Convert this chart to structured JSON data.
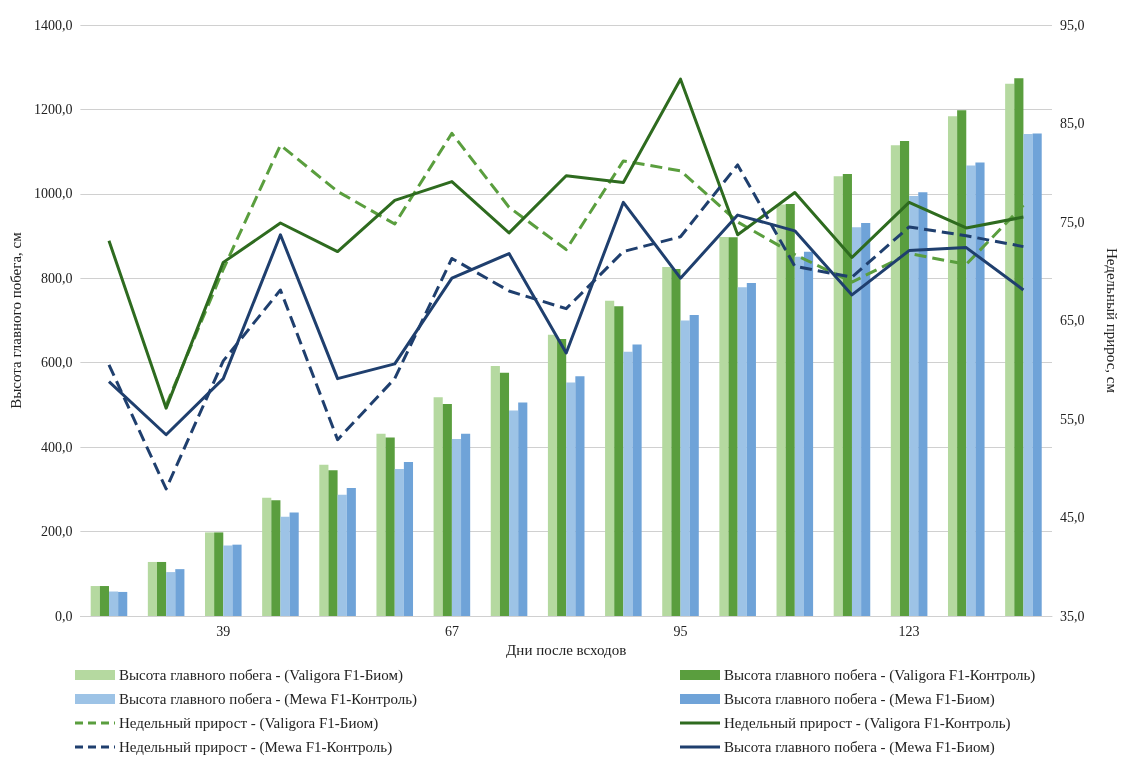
{
  "chart_data": {
    "type": "bar",
    "xlabel": "Дни после всходов",
    "ylabel": "Высота главного побега, см",
    "y2label": "Недельный прирос, см",
    "categories": [
      null,
      null,
      "39",
      null,
      null,
      null,
      "67",
      null,
      null,
      null,
      "95",
      null,
      null,
      null,
      "123",
      null,
      null
    ],
    "ylim": [
      0,
      1400
    ],
    "yticks": [
      {
        "value": 0,
        "label": "0,0"
      },
      {
        "value": 200,
        "label": "200,0"
      },
      {
        "value": 400,
        "label": "400,0"
      },
      {
        "value": 600,
        "label": "600,0"
      },
      {
        "value": 800,
        "label": "800,0"
      },
      {
        "value": 1000,
        "label": "1000,0"
      },
      {
        "value": 1200,
        "label": "1200,0"
      },
      {
        "value": 1400,
        "label": "1400,0"
      }
    ],
    "y2lim": [
      35,
      95
    ],
    "y2ticks": [
      {
        "value": 35,
        "label": "35,0"
      },
      {
        "value": 45,
        "label": "45,0"
      },
      {
        "value": 55,
        "label": "55,0"
      },
      {
        "value": 65,
        "label": "65,0"
      },
      {
        "value": 75,
        "label": "75,0"
      },
      {
        "value": 85,
        "label": "85,0"
      },
      {
        "value": 95,
        "label": "95,0"
      }
    ],
    "grid": "y",
    "legend": "bottom",
    "marker": "none",
    "series": [
      {
        "name": "Высота главного побега - (Valigora F1-Биом)",
        "color": "#b5d9a0",
        "values": [
          71,
          128,
          198,
          280,
          358,
          432,
          518,
          592,
          666,
          747,
          827,
          898,
          975,
          1042,
          1115,
          1184,
          1261
        ]
      },
      {
        "name": "Высота главного побега - (Valigora F1-Контроль)",
        "color": "#5a9e3e",
        "values": [
          71,
          128,
          198,
          274,
          345,
          423,
          502,
          576,
          656,
          734,
          822,
          897,
          976,
          1047,
          1125,
          1198,
          1274
        ]
      },
      {
        "name": "Высота главного побега - (Mewa F1-Контроль)",
        "color": "#9dc3e6",
        "values": [
          58,
          104,
          167,
          235,
          287,
          348,
          419,
          487,
          553,
          626,
          700,
          779,
          851,
          921,
          995,
          1067,
          1142
        ]
      },
      {
        "name": "Высота главного побега - (Mewa F1-Биом)",
        "color": "#6fa3d8",
        "values": [
          57,
          111,
          169,
          245,
          303,
          365,
          432,
          506,
          568,
          643,
          713,
          789,
          863,
          931,
          1004,
          1074,
          1143
        ]
      },
      {
        "name": "Недельный прирост - (Valigora F1-Биом)",
        "type": "line",
        "axis": "y2",
        "line_style": "dashed",
        "color": "#5a9e3e",
        "values": [
          null,
          56.4,
          70.2,
          82.8,
          78.1,
          74.8,
          84.0,
          76.5,
          72.2,
          81.2,
          80.2,
          75.0,
          71.7,
          68.9,
          71.8,
          70.7,
          76.7
        ]
      },
      {
        "name": "Недельный прирост - (Valigora F1-Контроль)",
        "type": "line",
        "axis": "y2",
        "line_style": "solid",
        "color": "#2e6b1f",
        "values": [
          73.1,
          56.1,
          70.9,
          74.9,
          72.0,
          77.2,
          79.1,
          73.9,
          79.7,
          79.0,
          89.5,
          73.7,
          78.0,
          71.4,
          77.0,
          74.4,
          75.5
        ]
      },
      {
        "name": "Недельный прирост - (Mewa F1-Контроль)",
        "type": "line",
        "axis": "y2",
        "line_style": "dashed",
        "color": "#1f3f6e",
        "values": [
          60.5,
          47.9,
          60.9,
          68.1,
          52.9,
          59.1,
          71.3,
          68.0,
          66.2,
          72.0,
          73.5,
          80.8,
          70.5,
          69.4,
          74.5,
          73.6,
          72.5
        ]
      },
      {
        "name": "Высота главного побега - (Mewa F1-Биом)",
        "type": "line",
        "axis": "y2",
        "line_style": "solid",
        "color": "#1f3f6e",
        "values": [
          58.8,
          53.4,
          59.1,
          73.7,
          59.1,
          60.6,
          69.3,
          71.8,
          61.7,
          77.0,
          69.3,
          75.7,
          74.1,
          67.6,
          72.1,
          72.4,
          68.1
        ]
      }
    ]
  }
}
